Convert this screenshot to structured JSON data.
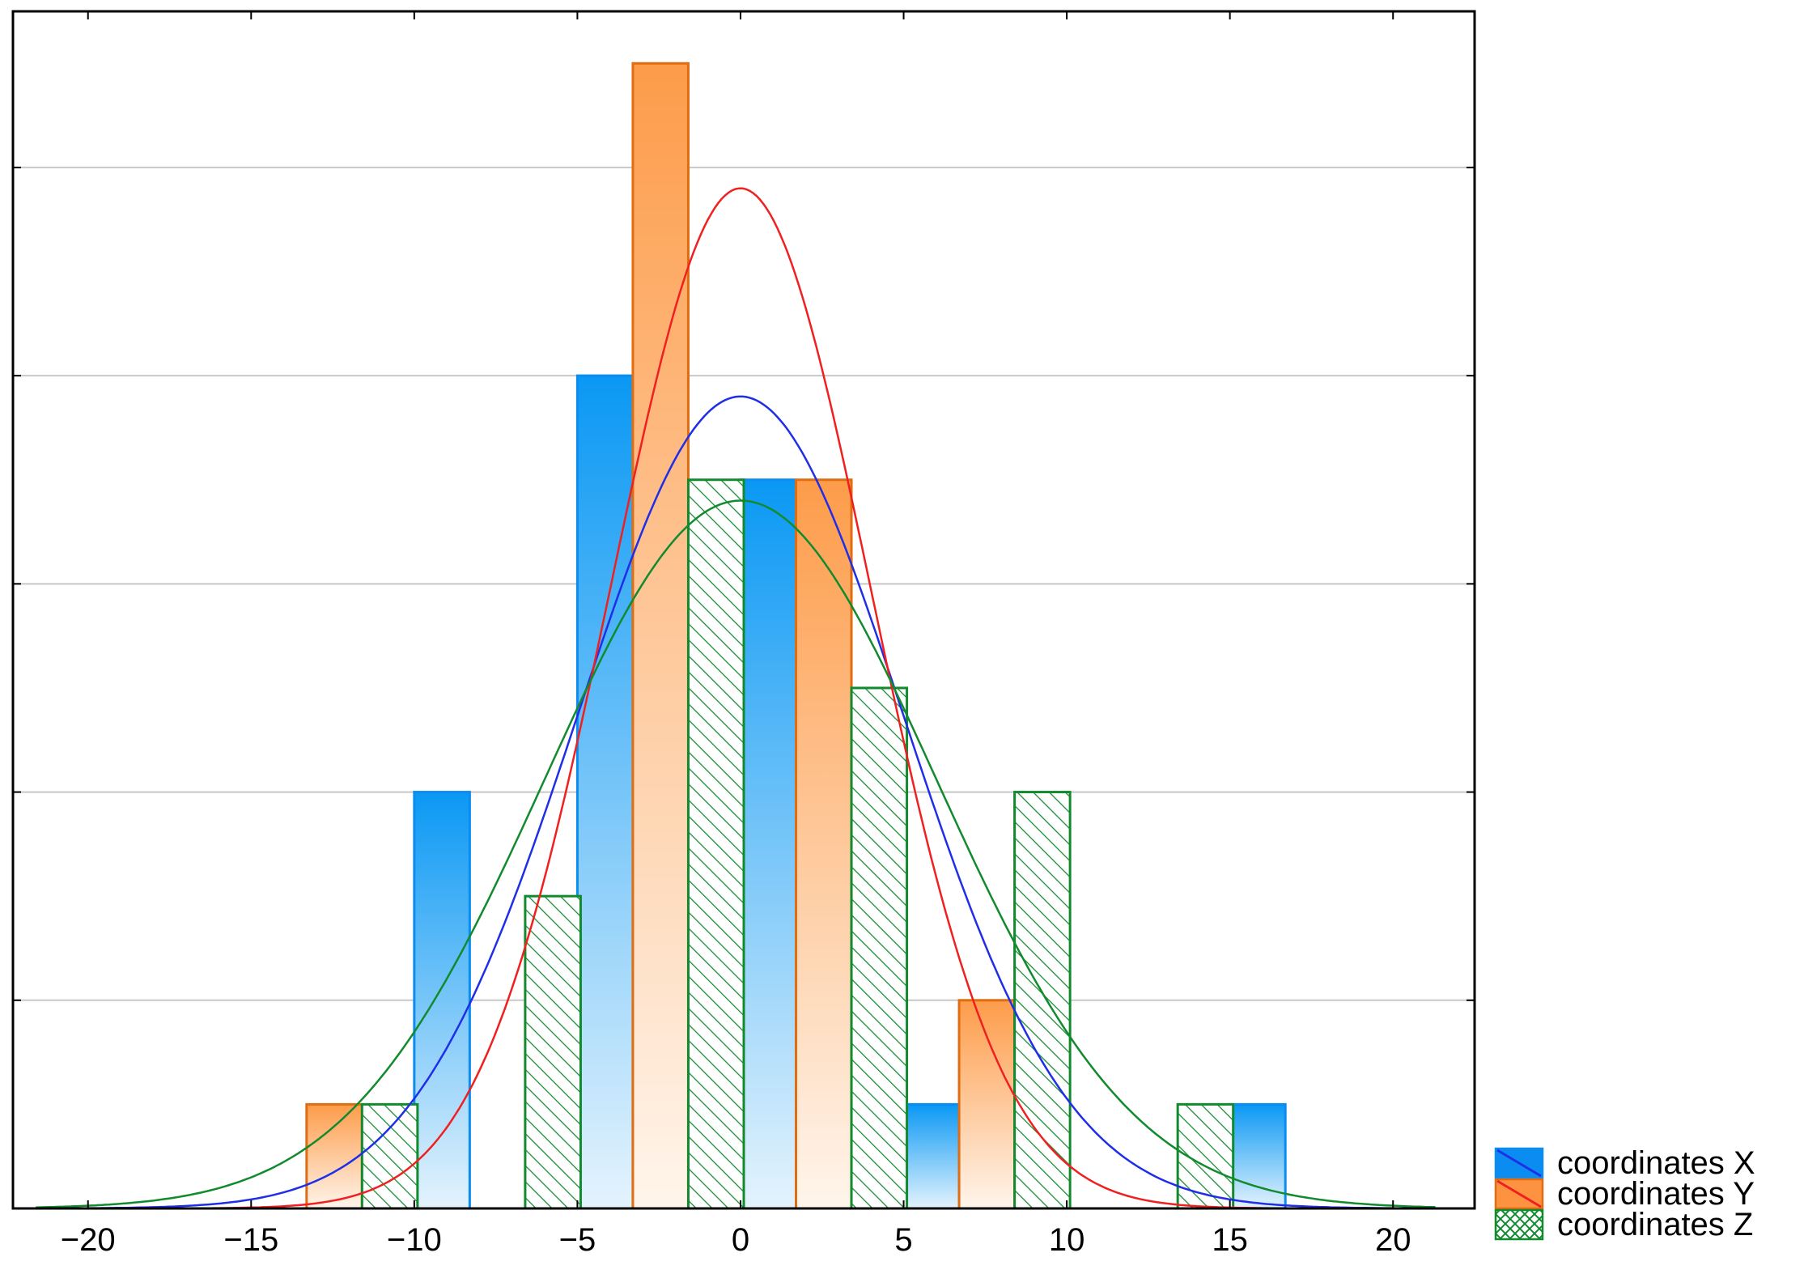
{
  "chart_data": {
    "type": "bar",
    "title": "",
    "xlabel": "",
    "ylabel": "",
    "xlim": [
      -22.3,
      22.5
    ],
    "ylim": [
      0,
      11.5
    ],
    "grid": "horizontal",
    "legend_position": "bottom-right, outside plot",
    "x_tick_labels": [
      "-20",
      "-15",
      "-10",
      "-5",
      "0",
      "5",
      "10",
      "15",
      "20"
    ],
    "x_tick_values": [
      -20,
      -15,
      -10,
      -5,
      0,
      5,
      10,
      15,
      20
    ],
    "y_gridlines": [
      2,
      4,
      6,
      8,
      10
    ],
    "bar_width": 1.7,
    "series": [
      {
        "name": "coordinates X",
        "color": "#0b8cf0",
        "pattern": "gradient",
        "bars": [
          {
            "x": -9.15,
            "count": 4
          },
          {
            "x": -4.15,
            "count": 8
          },
          {
            "x": 0.85,
            "count": 7
          },
          {
            "x": 5.85,
            "count": 1
          },
          {
            "x": 15.85,
            "count": 1
          }
        ],
        "curve": {
          "mean": 0,
          "sd": 5.0,
          "peak": 7.8
        }
      },
      {
        "name": "coordinates Y",
        "color": "#e06d12",
        "pattern": "gradient",
        "bars": [
          {
            "x": -12.45,
            "count": 1
          },
          {
            "x": -2.45,
            "count": 11
          },
          {
            "x": 2.55,
            "count": 7
          },
          {
            "x": 7.55,
            "count": 2
          }
        ],
        "curve": {
          "mean": 0,
          "sd": 4.0,
          "peak": 9.8
        }
      },
      {
        "name": "coordinates Z",
        "color": "#128a2e",
        "pattern": "hatched",
        "bars": [
          {
            "x": -10.75,
            "count": 1
          },
          {
            "x": -5.75,
            "count": 3
          },
          {
            "x": -0.75,
            "count": 7
          },
          {
            "x": 4.25,
            "count": 5
          },
          {
            "x": 9.25,
            "count": 4
          },
          {
            "x": 14.25,
            "count": 1
          }
        ],
        "curve": {
          "mean": 0,
          "sd": 6.0,
          "peak": 6.8
        }
      }
    ]
  }
}
